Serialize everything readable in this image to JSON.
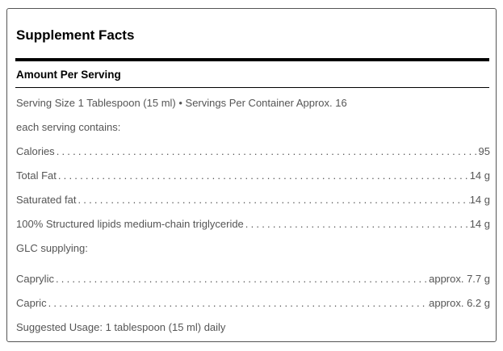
{
  "title": "Supplement Facts",
  "amount_header": "Amount Per Serving",
  "serving_info": "Serving Size 1 Tablespoon (15 ml) • Servings Per Container Approx. 16",
  "each_serving": "each serving contains:",
  "nutrients": [
    {
      "label": "Calories",
      "value": "95"
    },
    {
      "label": "Total Fat",
      "value": "14 g"
    },
    {
      "label": "Saturated fat",
      "value": "14 g"
    },
    {
      "label": "100% Structured lipids medium-chain triglyceride",
      "value": "14 g"
    }
  ],
  "glc_header": "GLC supplying:",
  "glc_items": [
    {
      "label": "Caprylic",
      "value": "approx. 7.7 g"
    },
    {
      "label": "Capric",
      "value": "approx. 6.2 g"
    }
  ],
  "suggested_usage": "Suggested Usage: 1 tablespoon (15 ml) daily"
}
